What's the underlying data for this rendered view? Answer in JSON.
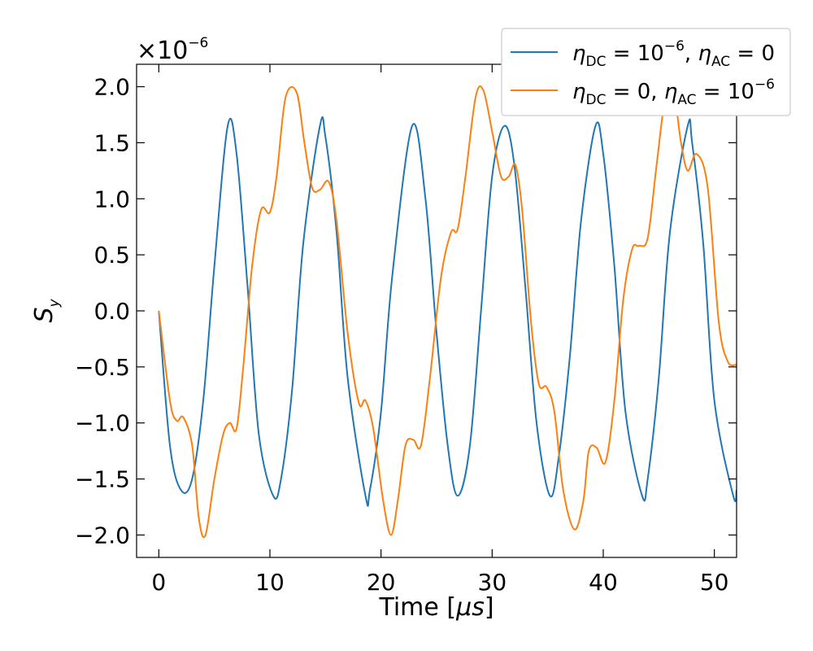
{
  "chart_data": {
    "type": "line",
    "title": "",
    "xlabel": "Time [μs]",
    "xlabel_prefix": "Time [",
    "xlabel_unit": "μs",
    "xlabel_suffix": "]",
    "ylabel": "S_y",
    "ylabel_main": "S",
    "ylabel_sub": "y",
    "y_scale_label": "×10",
    "y_scale_exponent": "−6",
    "xlim": [
      -2.0,
      52.0
    ],
    "ylim": [
      -2.2,
      2.2
    ],
    "x_ticks": [
      0,
      10,
      20,
      30,
      40,
      50
    ],
    "x_tick_labels": [
      "0",
      "10",
      "20",
      "30",
      "40",
      "50"
    ],
    "y_ticks": [
      -2.0,
      -1.5,
      -1.0,
      -0.5,
      0.0,
      0.5,
      1.0,
      1.5,
      2.0
    ],
    "y_tick_labels": [
      "−2.0",
      "−1.5",
      "−1.0",
      "−0.5",
      "0.0",
      "0.5",
      "1.0",
      "1.5",
      "2.0"
    ],
    "grid": false,
    "legend_position": "top-right",
    "series": [
      {
        "name": "η_DC = 10^−6, η_AC = 0",
        "color": "#1f77b4",
        "x": [
          0,
          1,
          2,
          3,
          4,
          5,
          6.2,
          7,
          8,
          9,
          10.3,
          11,
          12,
          13,
          14.5,
          15,
          16,
          17,
          18.6,
          19,
          20,
          21,
          22.8,
          24,
          25,
          26,
          26.9,
          28,
          29,
          30,
          31.1,
          32,
          33,
          34,
          35.2,
          36,
          37,
          38,
          39.3,
          40,
          41,
          42,
          43.5,
          44,
          45,
          46,
          47.6,
          48,
          49,
          50,
          51.7,
          52
        ],
        "values": [
          0,
          -1.2,
          -1.6,
          -1.5,
          -0.8,
          0.4,
          1.65,
          1.4,
          0.2,
          -1.1,
          -1.65,
          -1.5,
          -0.7,
          0.6,
          1.65,
          1.55,
          0.7,
          -0.6,
          -1.65,
          -1.6,
          -0.9,
          0.3,
          1.65,
          1.0,
          -0.2,
          -1.2,
          -1.65,
          -1.2,
          0.0,
          1.2,
          1.65,
          1.3,
          0.2,
          -1.0,
          -1.65,
          -1.3,
          -0.4,
          0.8,
          1.65,
          1.4,
          0.4,
          -0.9,
          -1.65,
          -1.5,
          -0.6,
          0.7,
          1.65,
          1.5,
          0.6,
          -0.8,
          -1.65,
          -1.6
        ]
      },
      {
        "name": "η_DC = 0, η_AC = 10^−6",
        "color": "#ff7f0e",
        "x": [
          0,
          1,
          1.6,
          2.2,
          3,
          3.6,
          4.2,
          5,
          5.8,
          6.4,
          7,
          7.6,
          8.4,
          9.2,
          10,
          10.6,
          11.4,
          12.4,
          13.1,
          13.8,
          14.5,
          15.3,
          16,
          17,
          18,
          18.6,
          19.3,
          20.2,
          20.9,
          21.5,
          22.2,
          22.9,
          23.6,
          24.4,
          25.4,
          26.3,
          26.9,
          27.6,
          28.5,
          29.2,
          30,
          30.8,
          31.5,
          32.1,
          32.7,
          33.5,
          34.2,
          34.9,
          35.6,
          36.4,
          37.4,
          38.2,
          38.7,
          39.4,
          40.2,
          41,
          41.8,
          42.6,
          43.2,
          44,
          44.8,
          45.6,
          46.4,
          47,
          47.6,
          48.4,
          49.4,
          50.4,
          51.2,
          52
        ],
        "values": [
          0,
          -0.8,
          -0.98,
          -0.95,
          -1.2,
          -1.85,
          -2.0,
          -1.5,
          -1.1,
          -1.0,
          -1.05,
          -0.5,
          0.4,
          0.9,
          0.88,
          1.2,
          1.9,
          1.95,
          1.5,
          1.1,
          1.08,
          1.15,
          0.8,
          -0.2,
          -0.82,
          -0.8,
          -1.05,
          -1.7,
          -2.0,
          -1.7,
          -1.2,
          -1.15,
          -1.2,
          -0.6,
          0.3,
          0.7,
          0.73,
          1.2,
          1.9,
          1.97,
          1.6,
          1.2,
          1.2,
          1.3,
          0.9,
          -0.1,
          -0.65,
          -0.68,
          -0.9,
          -1.6,
          -1.95,
          -1.7,
          -1.25,
          -1.22,
          -1.35,
          -0.8,
          0.1,
          0.55,
          0.58,
          0.65,
          1.3,
          1.9,
          1.9,
          1.5,
          1.25,
          1.4,
          1.1,
          -0.1,
          -0.45,
          -0.48
        ]
      }
    ]
  }
}
